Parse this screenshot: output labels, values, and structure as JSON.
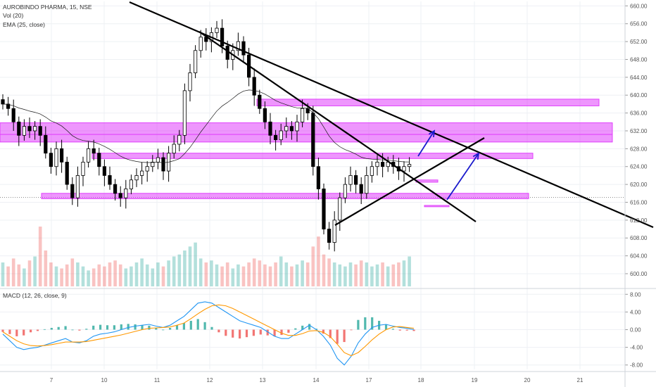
{
  "legend": {
    "symbol_line": "AUROBINDO PHARMA, 15, NSE",
    "vol_line": "Vol (20)",
    "ema_line": "EMA (25, close)",
    "macd_line": "MACD (12, 26, close, 9)"
  },
  "colors": {
    "up": "#26a69a",
    "down": "#ef5350",
    "candle": "#000000",
    "ema": "#1a1a1a",
    "zone": "#e040fb",
    "macd_line": "#2196f3",
    "signal_line": "#ff9800",
    "arrow": "#1a1acc"
  },
  "chart_data": [
    {
      "type": "candlestick",
      "pane": "price",
      "x_labels": [
        "7",
        "10",
        "11",
        "12",
        "13",
        "14",
        "17",
        "18",
        "19",
        "20",
        "21"
      ],
      "y_ticks": [
        600,
        604,
        608,
        612,
        616,
        620,
        624,
        628,
        632,
        636,
        640,
        644,
        648,
        652,
        656,
        660
      ],
      "y_tick_labels": [
        "600.00",
        "604.00",
        "608.00",
        "612.00",
        "616.00",
        "620.00",
        "624.00",
        "628.00",
        "632.00",
        "636.00",
        "640.00",
        "644.00",
        "648.00",
        "652.00",
        "656.00",
        "660.00"
      ],
      "ylim": [
        597,
        661
      ],
      "close_path": [
        638,
        637,
        634,
        631,
        633,
        632,
        633,
        631,
        627,
        624,
        628,
        625,
        620,
        617,
        622,
        625,
        628,
        627,
        624,
        622,
        620,
        618,
        617,
        619,
        621,
        622,
        623,
        624,
        625,
        626,
        623,
        627,
        629,
        631,
        641,
        645,
        650,
        653,
        652,
        654,
        655,
        651,
        648,
        650,
        652,
        649,
        644,
        640,
        637,
        634,
        631,
        630,
        632,
        633,
        632,
        634,
        637,
        636,
        624,
        619,
        610,
        607,
        612,
        617,
        620,
        622,
        620,
        618,
        622,
        624,
        625,
        624,
        625,
        624,
        623,
        624,
        624.5
      ],
      "ema_period": 25,
      "zones": [
        {
          "low": 629.5,
          "high": 631.2
        },
        {
          "low": 631.2,
          "high": 633.8
        },
        {
          "low": 637.6,
          "high": 639.1
        },
        {
          "low": 625.8,
          "high": 627.0
        },
        {
          "low": 616.8,
          "high": 618.0
        },
        {
          "low": 620.5,
          "high": 621.0
        },
        {
          "low": 615.0,
          "high": 615.3
        }
      ],
      "reference_level": 617.1
    },
    {
      "type": "bar",
      "pane": "volume",
      "series": [
        {
          "values": [
            12,
            10,
            14,
            11,
            9,
            13,
            15,
            30,
            18,
            12,
            10,
            9,
            11,
            14,
            12,
            10,
            8,
            9,
            11,
            10,
            12,
            13,
            11,
            9,
            10,
            12,
            14,
            11,
            9,
            12,
            10,
            13,
            15,
            16,
            18,
            20,
            22,
            14,
            12,
            13,
            11,
            10,
            12,
            9,
            11,
            10,
            12,
            14,
            13,
            11,
            10,
            12,
            15,
            12,
            10,
            11,
            13,
            12,
            20,
            25,
            16,
            14,
            12,
            11,
            10,
            12,
            11,
            13,
            12,
            10,
            11,
            12,
            10,
            11,
            12,
            13,
            15
          ]
        }
      ]
    },
    {
      "type": "line",
      "pane": "macd",
      "y_ticks": [
        -8,
        -4,
        0,
        4,
        8
      ],
      "y_tick_labels": [
        "-8.00",
        "-4.00",
        "0.00",
        "4.00",
        "8.00"
      ],
      "ylim": [
        -9,
        9
      ],
      "series": [
        {
          "values": [
            -1.0,
            -2.5,
            -4.0,
            -4.5,
            -4.2,
            -4.0,
            -3.5,
            -3.0,
            -2.5,
            -2.0,
            -2.8,
            -3.0,
            -2.5,
            -1.5,
            -1.0,
            -0.8,
            -0.5,
            0.0,
            0.5,
            0.8,
            1.0,
            1.2,
            0.8,
            0.5,
            1.0,
            2.0,
            3.0,
            4.5,
            6.0,
            6.3,
            6.0,
            5.0,
            4.0,
            3.0,
            2.0,
            1.5,
            1.0,
            0.5,
            -0.5,
            -1.5,
            -2.0,
            -2.0,
            -1.0,
            0.0,
            1.0,
            0.0,
            -1.5,
            -3.5,
            -6.5,
            -8.0,
            -6.0,
            -3.0,
            -1.0,
            0.5,
            1.0,
            1.2,
            0.8,
            0.5,
            0.3,
            0.0
          ]
        },
        {
          "values": [
            -0.5,
            -1.5,
            -2.5,
            -3.2,
            -3.6,
            -3.7,
            -3.6,
            -3.4,
            -3.1,
            -2.8,
            -2.8,
            -2.8,
            -2.7,
            -2.4,
            -2.1,
            -1.8,
            -1.5,
            -1.2,
            -0.8,
            -0.4,
            0.0,
            0.3,
            0.4,
            0.5,
            0.6,
            1.0,
            1.5,
            2.5,
            3.6,
            4.6,
            5.4,
            5.6,
            5.4,
            4.8,
            4.0,
            3.2,
            2.4,
            1.6,
            0.8,
            0.0,
            -0.8,
            -1.3,
            -1.3,
            -0.9,
            -0.3,
            -0.2,
            -0.6,
            -1.6,
            -3.3,
            -5.2,
            -5.9,
            -5.2,
            -3.8,
            -2.3,
            -1.0,
            0.0,
            0.6,
            0.7,
            0.5,
            0.3
          ]
        }
      ]
    }
  ]
}
